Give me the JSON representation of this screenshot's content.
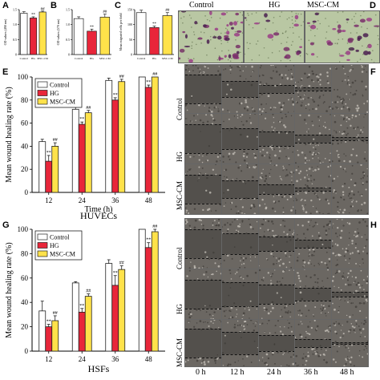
{
  "colors": {
    "control": "#ffffff",
    "hg": "#e8263a",
    "msc": "#ffe24a",
    "edge": "#222222"
  },
  "panels": {
    "A": "A",
    "B": "B",
    "C": "C",
    "D": "D",
    "E": "E",
    "F": "F",
    "G": "G",
    "H": "H"
  },
  "small_axes": {
    "A": {
      "ylabel": "OD values (490 nm)",
      "ticks": [
        "0",
        "0.5",
        "1.0",
        "1.5"
      ]
    },
    "B": {
      "ylabel": "OD values (570 nm)",
      "ticks": [
        "0",
        "0.5",
        "1.0",
        "1.5"
      ]
    },
    "C": {
      "ylabel": "Mean migrated cells per field",
      "ticks": [
        "0",
        "50",
        "100",
        "150"
      ]
    }
  },
  "panel_D": {
    "columns": [
      "Control",
      "HG",
      "MSC-CM"
    ]
  },
  "panel_F": {
    "rows": [
      "Control",
      "HG",
      "MSC-CM"
    ]
  },
  "panel_H": {
    "rows": [
      "Control",
      "HG",
      "MSC-CM"
    ],
    "time_labels": [
      "0 h",
      "12 h",
      "24 h",
      "36 h",
      "48 h"
    ]
  },
  "chart_data": [
    {
      "panel": "A",
      "type": "bar",
      "categories": [
        "Control",
        "HG",
        "MSC-CM"
      ],
      "values": [
        1.38,
        1.22,
        1.42
      ],
      "errors": [
        0.05,
        0.04,
        0.03
      ],
      "ylim": [
        0,
        1.5
      ],
      "annotations": [
        "",
        "**",
        "##"
      ]
    },
    {
      "panel": "B",
      "type": "bar",
      "categories": [
        "Control",
        "HG",
        "MSC-CM"
      ],
      "values": [
        1.2,
        0.78,
        1.25
      ],
      "errors": [
        0.06,
        0.07,
        0.1
      ],
      "ylim": [
        0,
        1.5
      ],
      "annotations": [
        "",
        "**",
        "##"
      ]
    },
    {
      "panel": "C",
      "type": "bar",
      "categories": [
        "Control",
        "HG",
        "MSC-CM"
      ],
      "values": [
        140,
        90,
        130
      ],
      "errors": [
        8,
        5,
        10
      ],
      "ylim": [
        0,
        150
      ],
      "annotations": [
        "",
        "**",
        "##"
      ]
    },
    {
      "panel": "E",
      "type": "bar",
      "title": "HUVECs",
      "xlabel": "Time (h)",
      "ylabel": "Mean wound healing rate (%)",
      "categories": [
        "12",
        "24",
        "36",
        "48"
      ],
      "ylim": [
        0,
        100
      ],
      "yticks": [
        0,
        20,
        40,
        60,
        80,
        100
      ],
      "legend": "top-left",
      "series": [
        {
          "name": "Control",
          "values": [
            44,
            72,
            97,
            100
          ],
          "errors": [
            2,
            2,
            2,
            0
          ],
          "annotations": [
            "",
            "",
            "",
            ""
          ]
        },
        {
          "name": "HG",
          "values": [
            27,
            59,
            80,
            91
          ],
          "errors": [
            5,
            2,
            2,
            2
          ],
          "annotations": [
            "**",
            "**",
            "**",
            "**"
          ]
        },
        {
          "name": "MSC-CM",
          "values": [
            40,
            69,
            96,
            100
          ],
          "errors": [
            3,
            2,
            2,
            0
          ],
          "annotations": [
            "##",
            "##",
            "##",
            "##"
          ]
        }
      ]
    },
    {
      "panel": "G",
      "type": "bar",
      "title": "HSFs",
      "xlabel": "",
      "ylabel": "Mean wound healing rate (%)",
      "categories": [
        "12",
        "24",
        "36",
        "48"
      ],
      "ylim": [
        0,
        100
      ],
      "yticks": [
        0,
        20,
        40,
        60,
        80,
        100
      ],
      "legend": "top-left",
      "series": [
        {
          "name": "Control",
          "values": [
            33,
            56,
            72,
            100
          ],
          "errors": [
            8,
            1,
            3,
            0
          ],
          "annotations": [
            "",
            "",
            "",
            ""
          ]
        },
        {
          "name": "HG",
          "values": [
            20,
            32,
            54,
            85
          ],
          "errors": [
            2,
            3,
            8,
            4
          ],
          "annotations": [
            "**",
            "**",
            "**",
            "**"
          ]
        },
        {
          "name": "MSC-CM",
          "values": [
            25,
            45,
            67,
            98
          ],
          "errors": [
            4,
            2,
            3,
            2
          ],
          "annotations": [
            "##",
            "##",
            "##",
            "##"
          ]
        }
      ]
    }
  ]
}
